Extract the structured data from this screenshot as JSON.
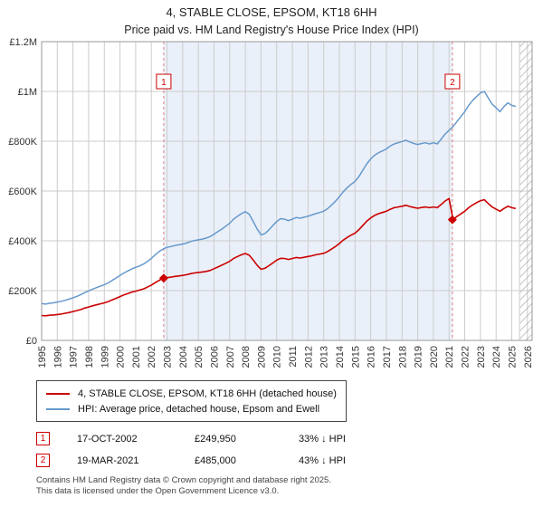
{
  "header": {
    "title": "4, STABLE CLOSE, EPSOM, KT18 6HH",
    "subtitle": "Price paid vs. HM Land Registry's House Price Index (HPI)"
  },
  "chart_data": {
    "type": "line",
    "x_start": 1995,
    "x_step": 0.25,
    "x_max": 2026.3,
    "ylim": [
      0,
      1200
    ],
    "y_values_unit": "GBP thousands",
    "y_ticks": [
      [
        0,
        "£0"
      ],
      [
        200,
        "£200K"
      ],
      [
        400,
        "£400K"
      ],
      [
        600,
        "£600K"
      ],
      [
        800,
        "£800K"
      ],
      [
        1000,
        "£1M"
      ],
      [
        1200,
        "£1.2M"
      ]
    ],
    "x_ticks": [
      1995,
      1996,
      1997,
      1998,
      1999,
      2000,
      2001,
      2002,
      2003,
      2004,
      2005,
      2006,
      2007,
      2008,
      2009,
      2010,
      2011,
      2012,
      2013,
      2014,
      2015,
      2016,
      2017,
      2018,
      2019,
      2020,
      2021,
      2022,
      2023,
      2024,
      2025,
      2026
    ],
    "colors": {
      "band": "#eaf0f9",
      "grid": "#cccccc",
      "dashed": "#e08080",
      "border": "#999999",
      "accent_red": "#cc0000"
    },
    "shaded_region": [
      2002.79,
      2021.21
    ],
    "hatch_region": [
      2025.5,
      2026.3
    ],
    "series": [
      {
        "name": "4, STABLE CLOSE, EPSOM, KT18 6HH (detached house)",
        "color": "#cc0000",
        "values": [
          100,
          99,
          101,
          102,
          104,
          106,
          109,
          112,
          116,
          120,
          124,
          130,
          134,
          139,
          143,
          147,
          151,
          156,
          163,
          169,
          176,
          183,
          188,
          194,
          198,
          202,
          207,
          214,
          222,
          232,
          241,
          250,
          252,
          254,
          257,
          259,
          261,
          264,
          268,
          271,
          273,
          275,
          277,
          281,
          288,
          295,
          302,
          310,
          318,
          329,
          337,
          344,
          349,
          342,
          323,
          302,
          286,
          290,
          300,
          311,
          322,
          330,
          329,
          325,
          329,
          333,
          331,
          334,
          337,
          340,
          344,
          347,
          350,
          357,
          367,
          377,
          389,
          403,
          414,
          423,
          431,
          445,
          462,
          479,
          492,
          502,
          509,
          514,
          519,
          527,
          533,
          536,
          539,
          543,
          538,
          534,
          531,
          534,
          536,
          533,
          536,
          533,
          546,
          560,
          570,
          485,
          498,
          508,
          519,
          533,
          544,
          553,
          561,
          565,
          550,
          536,
          527,
          519,
          530,
          539,
          533,
          530
        ]
      },
      {
        "name": "HPI: Average price, detached house, Epsom and Ewell",
        "color": "#6699cc",
        "values": [
          148,
          146,
          149,
          151,
          154,
          157,
          161,
          166,
          171,
          177,
          184,
          192,
          199,
          206,
          212,
          218,
          224,
          231,
          241,
          251,
          261,
          271,
          279,
          287,
          294,
          299,
          307,
          317,
          329,
          344,
          357,
          367,
          374,
          377,
          381,
          384,
          387,
          391,
          397,
          401,
          404,
          407,
          411,
          417,
          427,
          437,
          447,
          459,
          471,
          487,
          499,
          509,
          517,
          507,
          478,
          448,
          424,
          429,
          444,
          461,
          477,
          489,
          487,
          481,
          487,
          494,
          491,
          495,
          499,
          504,
          509,
          514,
          519,
          529,
          544,
          559,
          577,
          597,
          614,
          627,
          639,
          659,
          684,
          709,
          729,
          744,
          754,
          761,
          769,
          781,
          789,
          794,
          799,
          804,
          797,
          791,
          787,
          791,
          794,
          789,
          794,
          789,
          809,
          829,
          844,
          859,
          879,
          899,
          919,
          944,
          964,
          979,
          994,
          1000,
          974,
          949,
          934,
          919,
          939,
          954,
          944,
          940
        ]
      }
    ],
    "transactions": [
      {
        "num": "1",
        "year": 2002.79,
        "value": 249.95,
        "date": "17-OCT-2002",
        "price": "£249,950",
        "vs_hpi": "33% ↓ HPI"
      },
      {
        "num": "2",
        "year": 2021.21,
        "value": 485,
        "date": "19-MAR-2021",
        "price": "£485,000",
        "vs_hpi": "43% ↓ HPI"
      }
    ]
  },
  "footer": {
    "line1": "Contains HM Land Registry data © Crown copyright and database right 2025.",
    "line2": "This data is licensed under the Open Government Licence v3.0."
  }
}
